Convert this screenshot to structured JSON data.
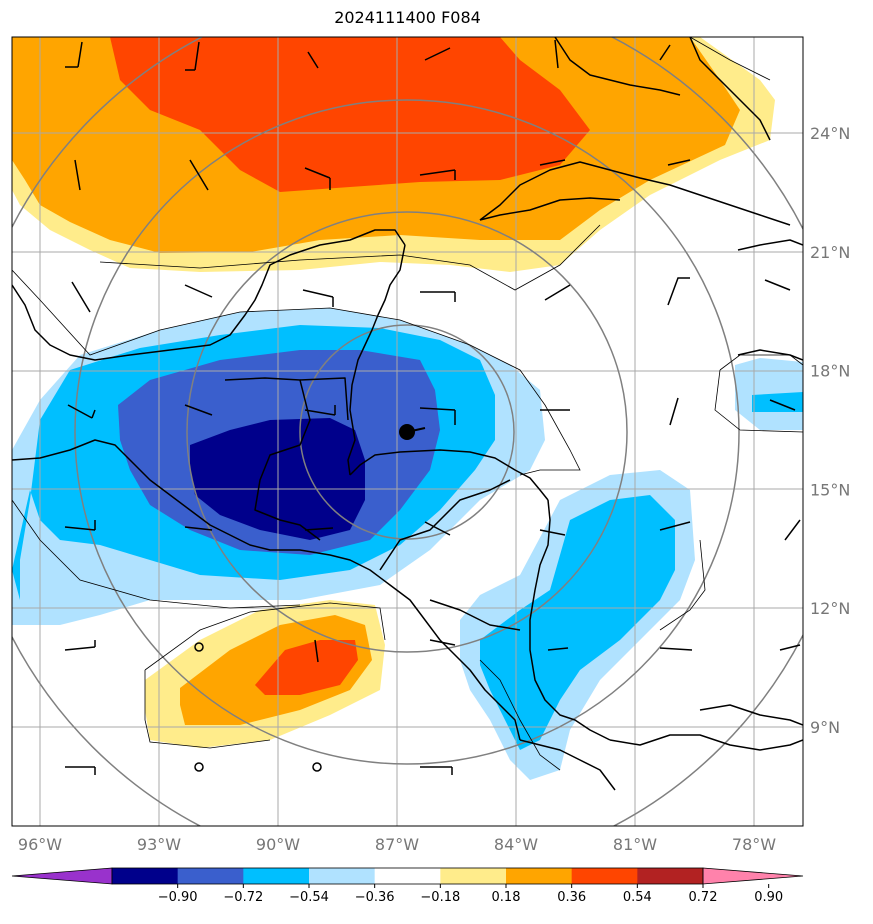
{
  "title": "2024111400 F084",
  "map": {
    "lon_labels": [
      "96°W",
      "93°W",
      "90°W",
      "87°W",
      "84°W",
      "81°W",
      "78°W"
    ],
    "lat_labels": [
      "24°N",
      "21°N",
      "18°N",
      "15°N",
      "12°N",
      "9°N"
    ],
    "lons": [
      -96,
      -93,
      -90,
      -87,
      -84,
      -81,
      -78
    ],
    "lats": [
      24,
      21,
      18,
      15,
      12,
      9
    ],
    "center_marker": {
      "lon": -86.8,
      "lat": 16.4
    }
  },
  "colorbar": {
    "ticks": [
      "−0.90",
      "−0.72",
      "−0.54",
      "−0.36",
      "−0.18",
      "0.18",
      "0.36",
      "0.54",
      "0.72",
      "0.90"
    ],
    "colors": [
      "#9932cc",
      "#00008b",
      "#3a5fcd",
      "#00bfff",
      "#b0e2ff",
      "#ffffff",
      "#ffec8b",
      "#ffa500",
      "#ff4500",
      "#b22222",
      "#ff82ab"
    ]
  },
  "colors": {
    "neg_090": "#00008b",
    "neg_072": "#3a5fcd",
    "neg_054": "#00bfff",
    "neg_036": "#b0e2ff",
    "pos_018": "#ffec8b",
    "pos_036": "#ffa500",
    "pos_054": "#ff4500",
    "grid": "#a9a9a9"
  }
}
